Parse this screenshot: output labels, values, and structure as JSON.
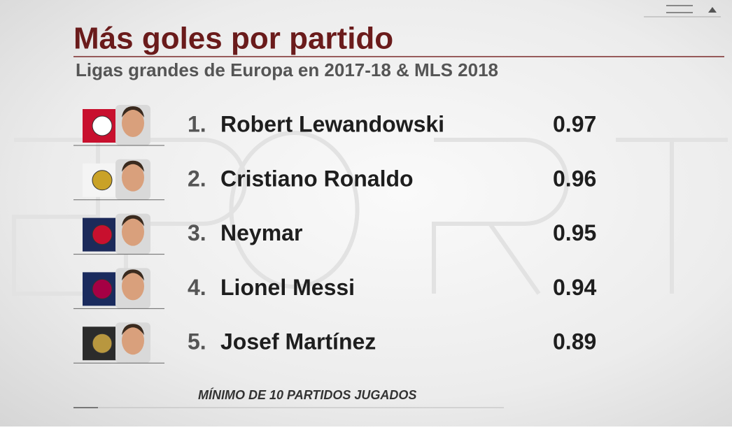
{
  "header": {
    "title": "Más goles por partido",
    "subtitle": "Ligas grandes de Europa en 2017-18 & MLS 2018"
  },
  "table": {
    "rows": [
      {
        "rank": "1.",
        "name": "Robert Lewandowski",
        "value": 0.97
      },
      {
        "rank": "2.",
        "name": "Cristiano Ronaldo",
        "value": 0.96
      },
      {
        "rank": "3.",
        "name": "Neymar",
        "value": 0.95
      },
      {
        "rank": "4.",
        "name": "Lionel Messi",
        "value": 0.94
      },
      {
        "rank": "5.",
        "name": "Josef Martínez",
        "value": 0.89
      }
    ]
  },
  "footnote": "MÍNIMO DE 10 PARTIDOS JUGADOS"
}
